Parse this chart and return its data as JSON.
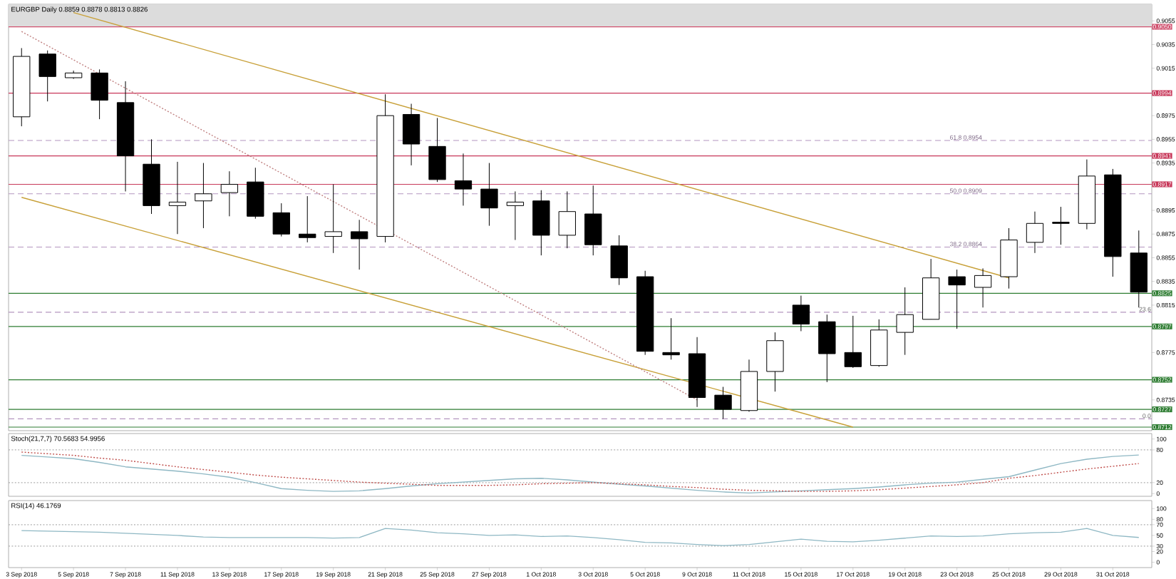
{
  "chart_data": [
    {
      "type": "candlestick",
      "title": "EURGBP Daily 0.8859 0.8878 0.8813 0.8826",
      "categories": [
        "3 Sep 2018",
        null,
        "5 Sep 2018",
        null,
        "7 Sep 2018",
        null,
        "11 Sep 2018",
        null,
        "13 Sep 2018",
        null,
        "17 Sep 2018",
        null,
        "19 Sep 2018",
        null,
        "21 Sep 2018",
        null,
        "25 Sep 2018",
        null,
        "27 Sep 2018",
        null,
        "1 Oct 2018",
        null,
        "3 Oct 2018",
        null,
        "5 Oct 2018",
        null,
        "9 Oct 2018",
        null,
        "11 Oct 2018",
        null,
        "15 Oct 2018",
        null,
        "17 Oct 2018",
        null,
        "19 Oct 2018",
        null,
        "23 Oct 2018",
        null,
        "25 Oct 2018",
        null,
        "29 Oct 2018",
        null,
        "31 Oct 2018",
        null
      ],
      "ohlc": [
        [
          0.8974,
          0.9032,
          0.8966,
          0.9025
        ],
        [
          0.9027,
          0.903,
          0.8987,
          0.9008
        ],
        [
          0.9007,
          0.9013,
          0.9006,
          0.9011
        ],
        [
          0.9011,
          0.9014,
          0.8972,
          0.8988
        ],
        [
          0.8986,
          0.9004,
          0.8911,
          0.8941
        ],
        [
          0.8934,
          0.8955,
          0.8892,
          0.8899
        ],
        [
          0.8899,
          0.8936,
          0.8875,
          0.8902
        ],
        [
          0.8903,
          0.8935,
          0.888,
          0.8909
        ],
        [
          0.891,
          0.8928,
          0.889,
          0.8917
        ],
        [
          0.8919,
          0.8931,
          0.8888,
          0.889
        ],
        [
          0.8893,
          0.8901,
          0.8873,
          0.8875
        ],
        [
          0.8875,
          0.8907,
          0.8868,
          0.8872
        ],
        [
          0.8873,
          0.8917,
          0.8859,
          0.8877
        ],
        [
          0.8877,
          0.8887,
          0.8845,
          0.8871
        ],
        [
          0.8873,
          0.8993,
          0.8868,
          0.8975
        ],
        [
          0.8976,
          0.8985,
          0.8933,
          0.8951
        ],
        [
          0.8949,
          0.8973,
          0.8919,
          0.8921
        ],
        [
          0.892,
          0.8943,
          0.8899,
          0.8913
        ],
        [
          0.8913,
          0.8935,
          0.8882,
          0.8897
        ],
        [
          0.8899,
          0.8911,
          0.887,
          0.8902
        ],
        [
          0.8903,
          0.8912,
          0.8857,
          0.8874
        ],
        [
          0.8874,
          0.8911,
          0.8863,
          0.8894
        ],
        [
          0.8892,
          0.8916,
          0.8857,
          0.8866
        ],
        [
          0.8865,
          0.8874,
          0.8832,
          0.8838
        ],
        [
          0.8839,
          0.8844,
          0.8773,
          0.8776
        ],
        [
          0.8775,
          0.8804,
          0.8769,
          0.8773
        ],
        [
          0.8774,
          0.8788,
          0.8729,
          0.8737
        ],
        [
          0.8739,
          0.8746,
          0.8719,
          0.8727
        ],
        [
          0.8726,
          0.8769,
          0.8725,
          0.8759
        ],
        [
          0.8759,
          0.8792,
          0.8742,
          0.8785
        ],
        [
          0.8815,
          0.8823,
          0.8793,
          0.8799
        ],
        [
          0.8801,
          0.8807,
          0.875,
          0.8774
        ],
        [
          0.8775,
          0.8806,
          0.8762,
          0.8763
        ],
        [
          0.8764,
          0.8803,
          0.8763,
          0.8794
        ],
        [
          0.8792,
          0.883,
          0.8773,
          0.8807
        ],
        [
          0.8803,
          0.8854,
          0.8803,
          0.8838
        ],
        [
          0.8839,
          0.8845,
          0.8795,
          0.8832
        ],
        [
          0.883,
          0.8846,
          0.8813,
          0.884
        ],
        [
          0.8839,
          0.888,
          0.8829,
          0.887
        ],
        [
          0.8868,
          0.8894,
          0.8859,
          0.8884
        ],
        [
          0.8885,
          0.8898,
          0.8866,
          0.8884
        ],
        [
          0.8884,
          0.8938,
          0.8879,
          0.8924
        ],
        [
          0.8925,
          0.893,
          0.8839,
          0.8856
        ],
        [
          0.8859,
          0.8878,
          0.8813,
          0.8826
        ]
      ],
      "series": [
        {
          "type": "line",
          "color": "#c8a038",
          "x": [
            "5 Sep 2018",
            "25 Oct 2018"
          ],
          "values": [
            0.9062,
            0.8838
          ]
        },
        {
          "type": "line",
          "color": "#c8a038",
          "x": [
            "3 Sep 2018",
            "17 Oct 2018"
          ],
          "values": [
            0.8906,
            0.8712
          ]
        },
        {
          "type": "line",
          "color": "#c08080",
          "line_style": "dotted",
          "x": [
            "3 Sep 2018",
            "9 Oct 2018"
          ],
          "values": [
            0.9046,
            0.8735
          ]
        }
      ],
      "ylim": [
        0.8709,
        0.9069
      ],
      "yticks": [
        0.9055,
        0.9035,
        0.9015,
        0.8975,
        0.8955,
        0.8935,
        0.8895,
        0.8875,
        0.8855,
        0.8835,
        0.8815,
        0.8775,
        0.8735
      ],
      "bands": [
        {
          "axis": "y",
          "from": 0.905,
          "to": 0.9069,
          "color": "#dcdcdc"
        }
      ],
      "ref_lines": [
        {
          "axis": "y",
          "value": 0.905,
          "label": "0.9050",
          "color": "#d0506e",
          "line_style": "solid"
        },
        {
          "axis": "y",
          "value": 0.8994,
          "label": "0.8994",
          "color": "#c8385a",
          "line_style": "solid"
        },
        {
          "axis": "y",
          "value": 0.8941,
          "label": "0.8941",
          "color": "#c8385a",
          "line_style": "solid"
        },
        {
          "axis": "y",
          "value": 0.8917,
          "label": "0.8917",
          "color": "#c8385a",
          "line_style": "solid"
        },
        {
          "axis": "y",
          "value": 0.8825,
          "label": "0.8825",
          "color": "#2e7d32",
          "line_style": "solid"
        },
        {
          "axis": "y",
          "value": 0.8797,
          "label": "0.8797",
          "color": "#2e7d32",
          "line_style": "solid"
        },
        {
          "axis": "y",
          "value": 0.8752,
          "label": "0.8752",
          "color": "#2e7d32",
          "line_style": "solid"
        },
        {
          "axis": "y",
          "value": 0.8727,
          "label": "0.8727",
          "color": "#2e7d32",
          "line_style": "solid"
        },
        {
          "axis": "y",
          "value": 0.8712,
          "label": "0.8712",
          "color": "#2e7d32",
          "line_style": "solid"
        },
        {
          "axis": "y",
          "value": 0.8954,
          "label": "61.8 0.8954",
          "color": "#b496c0",
          "line_style": "dashed"
        },
        {
          "axis": "y",
          "value": 0.8909,
          "label": "50.0 0.8909",
          "color": "#b496c0",
          "line_style": "dashed"
        },
        {
          "axis": "y",
          "value": 0.8864,
          "label": "38.2 0.8864",
          "color": "#b496c0",
          "line_style": "dashed"
        },
        {
          "axis": "y",
          "value": 0.8809,
          "color": "#b496c0",
          "line_style": "dashed"
        },
        {
          "axis": "y",
          "value": 0.8719,
          "color": "#b496c0",
          "line_style": "dashed"
        }
      ],
      "annotations": [
        {
          "text": "23.6",
          "y": 0.8809
        },
        {
          "text": "0.0",
          "y": 0.8719
        }
      ],
      "tick_labels": "y"
    },
    {
      "type": "line",
      "title": "Stoch(21,7,7) 70.5683 54.9956",
      "categories": [
        "3 Sep 2018",
        null,
        "5 Sep 2018",
        null,
        "7 Sep 2018",
        null,
        "11 Sep 2018",
        null,
        "13 Sep 2018",
        null,
        "17 Sep 2018",
        null,
        "19 Sep 2018",
        null,
        "21 Sep 2018",
        null,
        "25 Sep 2018",
        null,
        "27 Sep 2018",
        null,
        "1 Oct 2018",
        null,
        "3 Oct 2018",
        null,
        "5 Oct 2018",
        null,
        "9 Oct 2018",
        null,
        "11 Oct 2018",
        null,
        "15 Oct 2018",
        null,
        "17 Oct 2018",
        null,
        "19 Oct 2018",
        null,
        "23 Oct 2018",
        null,
        "25 Oct 2018",
        null,
        "29 Oct 2018",
        null,
        "31 Oct 2018",
        null
      ],
      "series": [
        {
          "color": "#8fb8c4",
          "values": [
            70,
            67,
            64,
            57,
            49,
            45,
            41,
            36,
            30,
            20,
            9,
            6,
            4,
            5,
            9,
            14,
            18,
            21,
            24,
            27,
            28,
            25,
            21,
            17,
            14,
            10,
            6,
            3,
            1,
            3,
            5,
            7,
            9,
            12,
            16,
            19,
            21,
            26,
            31,
            43,
            55,
            63,
            68,
            70.6
          ]
        },
        {
          "color": "#c0504d",
          "line_style": "dotted",
          "values": [
            76,
            73,
            70,
            65,
            61,
            55,
            49,
            44,
            39,
            34,
            30,
            27,
            24,
            21,
            19,
            17,
            15,
            15,
            15,
            16,
            18,
            19,
            20,
            18,
            16,
            13,
            11,
            8,
            6,
            5,
            4,
            4,
            5,
            7,
            10,
            13,
            16,
            20,
            28,
            33,
            39,
            45,
            50,
            55
          ]
        }
      ],
      "ylim": [
        -5,
        110
      ],
      "yticks": [
        0,
        20,
        80,
        100
      ],
      "ref_lines": [
        {
          "axis": "y",
          "value": 80,
          "color": "#b0b0b0",
          "line_style": "dotted"
        },
        {
          "axis": "y",
          "value": 20,
          "color": "#b0b0b0",
          "line_style": "dotted"
        }
      ],
      "tick_labels": "y"
    },
    {
      "type": "line",
      "title": "RSI(14) 46.1769",
      "categories": [
        "3 Sep 2018",
        null,
        "5 Sep 2018",
        null,
        "7 Sep 2018",
        null,
        "11 Sep 2018",
        null,
        "13 Sep 2018",
        null,
        "17 Sep 2018",
        null,
        "19 Sep 2018",
        null,
        "21 Sep 2018",
        null,
        "25 Sep 2018",
        null,
        "27 Sep 2018",
        null,
        "1 Oct 2018",
        null,
        "3 Oct 2018",
        null,
        "5 Oct 2018",
        null,
        "9 Oct 2018",
        null,
        "11 Oct 2018",
        null,
        "15 Oct 2018",
        null,
        "17 Oct 2018",
        null,
        "19 Oct 2018",
        null,
        "23 Oct 2018",
        null,
        "25 Oct 2018",
        null,
        "29 Oct 2018",
        null,
        "31 Oct 2018",
        null
      ],
      "series": [
        {
          "color": "#8fb8c4",
          "values": [
            59,
            58,
            57,
            56,
            54,
            52,
            50,
            47,
            46,
            46,
            46,
            46,
            45,
            46,
            63,
            60,
            55,
            53,
            50,
            51,
            48,
            49,
            46,
            42,
            37,
            36,
            33,
            31,
            33,
            38,
            43,
            39,
            38,
            41,
            45,
            49,
            48,
            49,
            53,
            55,
            56,
            63,
            50,
            46.2
          ]
        }
      ],
      "ylim": [
        -10,
        115
      ],
      "yticks": [
        0,
        20,
        30,
        50,
        70,
        80,
        100
      ],
      "ref_lines": [
        {
          "axis": "y",
          "value": 70,
          "color": "#b0b0b0",
          "line_style": "dotted"
        },
        {
          "axis": "y",
          "value": 30,
          "color": "#b0b0b0",
          "line_style": "dotted"
        }
      ]
    }
  ]
}
